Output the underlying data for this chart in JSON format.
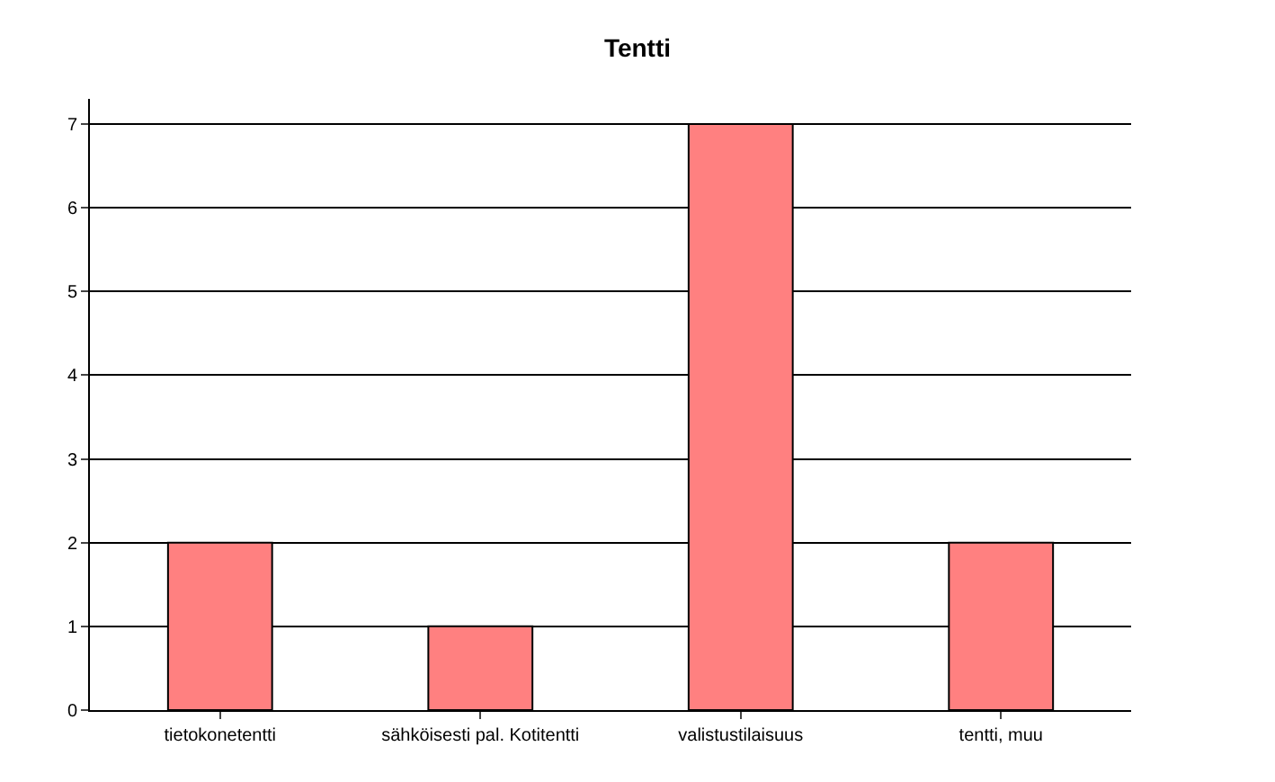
{
  "chart_data": {
    "type": "bar",
    "title": "Tentti",
    "categories": [
      "tietokonetentti",
      "sähköisesti pal. Kotitentti",
      "valistustilaisuus",
      "tentti, muu"
    ],
    "values": [
      2,
      1,
      7,
      2
    ],
    "color": "#ff8080",
    "ylim": [
      0,
      7.3
    ],
    "yticks": [
      0,
      1,
      2,
      3,
      4,
      5,
      6,
      7
    ],
    "grid": "y"
  }
}
